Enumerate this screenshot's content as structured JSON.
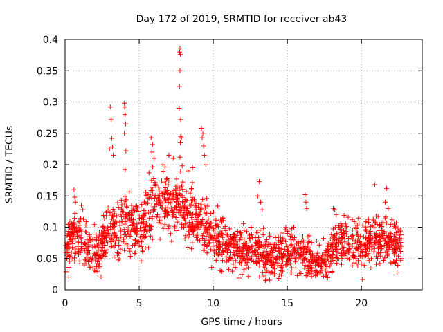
{
  "chart_data": {
    "type": "scatter",
    "title": "Day 172 of 2019, SRMTID for receiver ab43",
    "xlabel": "GPS time / hours",
    "ylabel": "SRMTID / TECUs",
    "xlim": [
      0,
      24.1
    ],
    "ylim": [
      0,
      0.4
    ],
    "xticks": [
      0,
      5,
      10,
      15,
      20
    ],
    "xtick_labels": [
      "0",
      "5",
      "10",
      "15",
      "20"
    ],
    "yticks": [
      0,
      0.05,
      0.1,
      0.15,
      0.2,
      0.25,
      0.3,
      0.35,
      0.4
    ],
    "ytick_labels": [
      "0",
      "0.05",
      "0.1",
      "0.15",
      "0.2",
      "0.25",
      "0.3",
      "0.35",
      "0.4"
    ],
    "grid": true,
    "marker": "+",
    "color": "#ff0000",
    "x_range": [
      0,
      22.7
    ],
    "profile": [
      [
        0,
        0.065
      ],
      [
        0.5,
        0.085
      ],
      [
        1,
        0.09
      ],
      [
        1.5,
        0.065
      ],
      [
        2,
        0.06
      ],
      [
        2.5,
        0.075
      ],
      [
        3,
        0.095
      ],
      [
        3.5,
        0.09
      ],
      [
        4,
        0.11
      ],
      [
        4.5,
        0.1
      ],
      [
        5,
        0.095
      ],
      [
        5.5,
        0.115
      ],
      [
        6,
        0.15
      ],
      [
        6.5,
        0.145
      ],
      [
        7,
        0.15
      ],
      [
        7.5,
        0.14
      ],
      [
        8,
        0.125
      ],
      [
        8.5,
        0.115
      ],
      [
        9,
        0.11
      ],
      [
        9.5,
        0.1
      ],
      [
        10,
        0.085
      ],
      [
        10.5,
        0.075
      ],
      [
        11,
        0.07
      ],
      [
        11.5,
        0.065
      ],
      [
        12,
        0.06
      ],
      [
        12.5,
        0.06
      ],
      [
        13,
        0.065
      ],
      [
        13.5,
        0.055
      ],
      [
        14,
        0.05
      ],
      [
        14.5,
        0.055
      ],
      [
        15,
        0.065
      ],
      [
        15.5,
        0.06
      ],
      [
        16,
        0.06
      ],
      [
        16.5,
        0.045
      ],
      [
        17,
        0.04
      ],
      [
        17.5,
        0.045
      ],
      [
        18,
        0.06
      ],
      [
        18.5,
        0.075
      ],
      [
        19,
        0.08
      ],
      [
        19.5,
        0.075
      ],
      [
        20,
        0.07
      ],
      [
        20.5,
        0.075
      ],
      [
        21,
        0.08
      ],
      [
        21.5,
        0.08
      ],
      [
        22,
        0.075
      ],
      [
        22.7,
        0.07
      ]
    ],
    "spread": 0.035,
    "n_points": 1900,
    "peaks": [
      {
        "x": 3.05,
        "y": 0.292
      },
      {
        "x": 3.1,
        "y": 0.272
      },
      {
        "x": 3.15,
        "y": 0.242
      },
      {
        "x": 3.2,
        "y": 0.228
      },
      {
        "x": 3.25,
        "y": 0.215
      },
      {
        "x": 3.0,
        "y": 0.225
      },
      {
        "x": 4.0,
        "y": 0.298
      },
      {
        "x": 4.02,
        "y": 0.292
      },
      {
        "x": 4.05,
        "y": 0.28
      },
      {
        "x": 4.08,
        "y": 0.265
      },
      {
        "x": 4.0,
        "y": 0.25
      },
      {
        "x": 4.1,
        "y": 0.222
      },
      {
        "x": 4.05,
        "y": 0.192
      },
      {
        "x": 5.8,
        "y": 0.243
      },
      {
        "x": 5.9,
        "y": 0.232
      },
      {
        "x": 5.85,
        "y": 0.22
      },
      {
        "x": 6.0,
        "y": 0.21
      },
      {
        "x": 7.75,
        "y": 0.386
      },
      {
        "x": 7.73,
        "y": 0.38
      },
      {
        "x": 7.78,
        "y": 0.376
      },
      {
        "x": 7.75,
        "y": 0.35
      },
      {
        "x": 7.72,
        "y": 0.325
      },
      {
        "x": 7.7,
        "y": 0.29
      },
      {
        "x": 7.8,
        "y": 0.272
      },
      {
        "x": 7.8,
        "y": 0.245
      },
      {
        "x": 7.85,
        "y": 0.243
      },
      {
        "x": 7.78,
        "y": 0.235
      },
      {
        "x": 7.75,
        "y": 0.212
      },
      {
        "x": 7.9,
        "y": 0.198
      },
      {
        "x": 9.2,
        "y": 0.258
      },
      {
        "x": 9.3,
        "y": 0.25
      },
      {
        "x": 9.25,
        "y": 0.243
      },
      {
        "x": 9.35,
        "y": 0.23
      },
      {
        "x": 9.4,
        "y": 0.215
      },
      {
        "x": 9.5,
        "y": 0.2
      },
      {
        "x": 13.1,
        "y": 0.173
      },
      {
        "x": 13.0,
        "y": 0.15
      },
      {
        "x": 13.2,
        "y": 0.14
      },
      {
        "x": 13.3,
        "y": 0.128
      },
      {
        "x": 16.2,
        "y": 0.152
      },
      {
        "x": 16.25,
        "y": 0.14
      },
      {
        "x": 16.3,
        "y": 0.13
      },
      {
        "x": 18.1,
        "y": 0.13
      },
      {
        "x": 18.2,
        "y": 0.128
      },
      {
        "x": 18.3,
        "y": 0.12
      },
      {
        "x": 20.9,
        "y": 0.168
      },
      {
        "x": 21.7,
        "y": 0.162
      },
      {
        "x": 21.6,
        "y": 0.14
      },
      {
        "x": 21.8,
        "y": 0.13
      },
      {
        "x": 0.6,
        "y": 0.16
      },
      {
        "x": 0.65,
        "y": 0.148
      },
      {
        "x": 0.7,
        "y": 0.14
      },
      {
        "x": 1.1,
        "y": 0.135
      },
      {
        "x": 1.2,
        "y": 0.128
      },
      {
        "x": 6.6,
        "y": 0.2
      },
      {
        "x": 7.0,
        "y": 0.215
      },
      {
        "x": 7.3,
        "y": 0.21
      },
      {
        "x": 8.3,
        "y": 0.19
      },
      {
        "x": 8.6,
        "y": 0.195
      }
    ]
  }
}
